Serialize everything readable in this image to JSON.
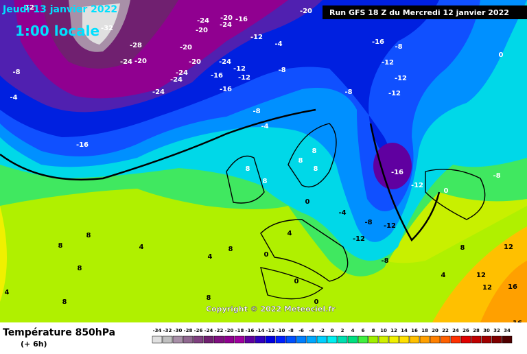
{
  "header": {
    "date": "Jeudi 13 janvier 2022",
    "time": "1:00 locale",
    "run": "Run GFS 18 Z du Mercredi 12 janvier 2022"
  },
  "copyright": "Copyright © 2022 Meteociel.fr",
  "legend": {
    "title": "Température 850hPa",
    "subtitle": "(+ 6h)",
    "scale": [
      {
        "value": -34,
        "color": "#e0e0e0"
      },
      {
        "value": -32,
        "color": "#c0c0c0"
      },
      {
        "value": -30,
        "color": "#a890a8"
      },
      {
        "value": -28,
        "color": "#906890"
      },
      {
        "value": -26,
        "color": "#804080"
      },
      {
        "value": -24,
        "color": "#702070"
      },
      {
        "value": -22,
        "color": "#801080"
      },
      {
        "value": -20,
        "color": "#900090"
      },
      {
        "value": -18,
        "color": "#a000a0"
      },
      {
        "value": -16,
        "color": "#6000a0"
      },
      {
        "value": -14,
        "color": "#3000c0"
      },
      {
        "value": -12,
        "color": "#0000e0"
      },
      {
        "value": -10,
        "color": "#0020ff"
      },
      {
        "value": -8,
        "color": "#0050ff"
      },
      {
        "value": -6,
        "color": "#0080ff"
      },
      {
        "value": -4,
        "color": "#00a8ff"
      },
      {
        "value": -2,
        "color": "#00d0ff"
      },
      {
        "value": 0,
        "color": "#00f0f0"
      },
      {
        "value": 2,
        "color": "#00e0b0"
      },
      {
        "value": 4,
        "color": "#00e080"
      },
      {
        "value": 6,
        "color": "#40f040"
      },
      {
        "value": 8,
        "color": "#a0f000"
      },
      {
        "value": 10,
        "color": "#d0f000"
      },
      {
        "value": 12,
        "color": "#f0f000"
      },
      {
        "value": 14,
        "color": "#ffe000"
      },
      {
        "value": 16,
        "color": "#ffc000"
      },
      {
        "value": 18,
        "color": "#ffa000"
      },
      {
        "value": 20,
        "color": "#ff8000"
      },
      {
        "value": 22,
        "color": "#ff6000"
      },
      {
        "value": 24,
        "color": "#ff3000"
      },
      {
        "value": 26,
        "color": "#e00000"
      },
      {
        "value": 28,
        "color": "#c00000"
      },
      {
        "value": 30,
        "color": "#a00000"
      },
      {
        "value": 32,
        "color": "#800000"
      },
      {
        "value": 34,
        "color": "#500000"
      }
    ]
  },
  "map_labels": [
    "-12",
    "-32",
    "-28",
    "-24",
    "-20",
    "-20",
    "-20",
    "-24",
    "-20",
    "-24",
    "-16",
    "-20",
    "-12",
    "-24",
    "-12",
    "-20",
    "-24",
    "-24",
    "-16",
    "-12",
    "-24",
    "-16",
    "-8",
    "-4",
    "-8",
    "-4",
    "-16",
    "-8",
    "-12",
    "-12",
    "-8",
    "-12",
    "-8",
    "-4",
    "-16",
    "-16",
    "-12",
    "-8",
    "-12",
    "-4",
    "-12",
    "-8",
    "0",
    "4",
    "8",
    "8",
    "8",
    "8",
    "8",
    "0",
    "0",
    "-8",
    "8",
    "8",
    "4",
    "8",
    "4",
    "8",
    "8",
    "4",
    "8",
    "0",
    "0",
    "0",
    "4",
    "12",
    "12",
    "16",
    "16",
    "8",
    "12"
  ]
}
